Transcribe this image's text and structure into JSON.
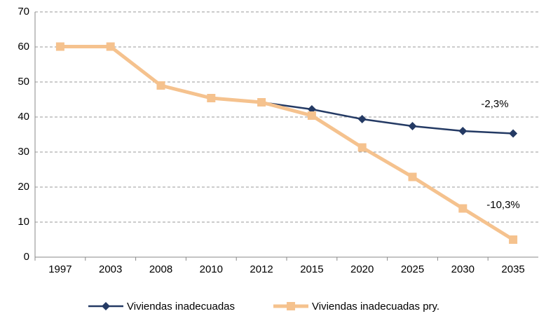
{
  "chart_data": {
    "type": "line",
    "categories": [
      "1997",
      "2003",
      "2008",
      "2010",
      "2012",
      "2015",
      "2020",
      "2025",
      "2030",
      "2035"
    ],
    "series": [
      {
        "name": "Viviendas inadecuadas",
        "color": "#243a64",
        "marker": "diamond",
        "values": [
          60.1,
          60.1,
          49,
          45.4,
          44.2,
          42.2,
          39.4,
          37.4,
          36,
          35.3
        ]
      },
      {
        "name": "Viviendas inadecuadas pry.",
        "color": "#f5c28e",
        "marker": "square",
        "values": [
          60.1,
          60.1,
          49,
          45.4,
          44.2,
          40.4,
          31.3,
          22.9,
          13.9,
          5
        ]
      }
    ],
    "annotations": [
      "-2,3%",
      "-10,3%"
    ],
    "ylim": [
      0,
      70
    ],
    "yticks": [
      0,
      10,
      20,
      30,
      40,
      50,
      60,
      70
    ],
    "grid": true,
    "legend": "bottom"
  }
}
